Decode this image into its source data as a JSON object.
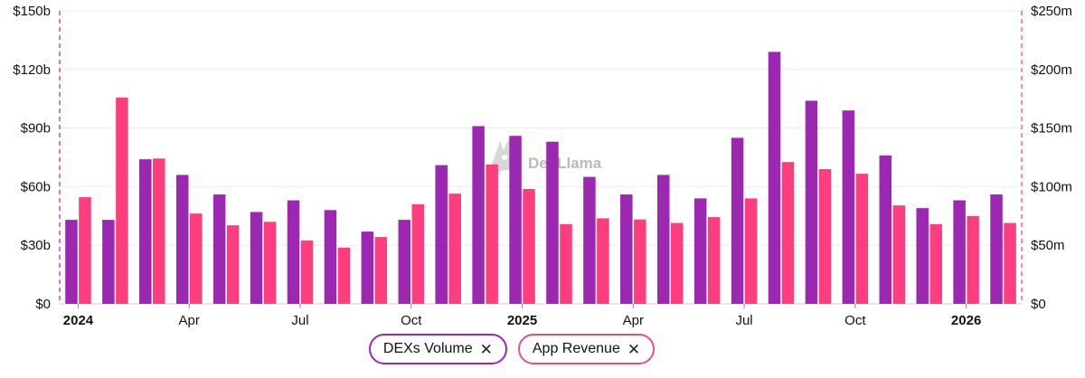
{
  "chart_data": {
    "type": "bar",
    "x_start": "2024-01",
    "months": [
      "2024-01",
      "2024-02",
      "2024-03",
      "2024-04",
      "2024-05",
      "2024-06",
      "2024-07",
      "2024-08",
      "2024-09",
      "2024-10",
      "2024-11",
      "2024-12",
      "2025-01",
      "2025-02",
      "2025-03",
      "2025-04",
      "2025-05",
      "2025-06",
      "2025-07",
      "2025-08",
      "2025-09",
      "2025-10",
      "2025-11",
      "2025-12",
      "2026-01",
      "2026-02"
    ],
    "x_tick_labels": [
      {
        "month": "2024-01",
        "label": "2024",
        "bold": true
      },
      {
        "month": "2024-04",
        "label": "Apr",
        "bold": false
      },
      {
        "month": "2024-07",
        "label": "Jul",
        "bold": false
      },
      {
        "month": "2024-10",
        "label": "Oct",
        "bold": false
      },
      {
        "month": "2025-01",
        "label": "2025",
        "bold": true
      },
      {
        "month": "2025-04",
        "label": "Apr",
        "bold": false
      },
      {
        "month": "2025-07",
        "label": "Jul",
        "bold": false
      },
      {
        "month": "2025-10",
        "label": "Oct",
        "bold": false
      },
      {
        "month": "2026-01",
        "label": "2026",
        "bold": true
      }
    ],
    "y_left": {
      "unit": "billions USD",
      "lim": [
        0,
        150
      ],
      "ticks": [
        0,
        30,
        60,
        90,
        120,
        150
      ],
      "tick_labels": [
        "$0",
        "$30b",
        "$60b",
        "$90b",
        "$120b",
        "$150b"
      ]
    },
    "y_right": {
      "unit": "millions USD",
      "lim": [
        0,
        250
      ],
      "ticks": [
        0,
        50,
        100,
        150,
        200,
        250
      ],
      "tick_labels": [
        "$0",
        "$50m",
        "$100m",
        "$150m",
        "$200m",
        "$250m"
      ]
    },
    "series": [
      {
        "name": "DEXs Volume",
        "axis": "left",
        "color": "#9c27b0",
        "values": [
          43,
          43,
          74,
          66,
          56,
          47,
          53,
          48,
          37,
          43,
          71,
          91,
          86,
          83,
          65,
          56,
          66,
          54,
          85,
          129,
          104,
          99,
          76,
          49,
          53,
          56
        ]
      },
      {
        "name": "App Revenue",
        "axis": "right",
        "color": "#fe3d7f",
        "values": [
          91,
          176,
          124,
          77,
          67,
          70,
          54,
          48,
          57,
          85,
          94,
          119,
          98,
          68,
          73,
          72,
          69,
          74,
          90,
          121,
          115,
          111,
          84,
          68,
          75,
          69
        ]
      }
    ],
    "grid": true,
    "legend_position": "bottom-center"
  },
  "legend": [
    {
      "label": "DEXs Volume",
      "close": "✕",
      "color": "#9c27b0"
    },
    {
      "label": "App Revenue",
      "close": "✕",
      "color": "#e0508a"
    }
  ],
  "watermark": {
    "text": "DefiLlama",
    "icon": "llama-logo-icon"
  },
  "colors": {
    "grid": "#ececec",
    "axis": "#cccccc",
    "left_axis_dash": "#9c27b0",
    "right_axis_dash": "#fe3d7f"
  }
}
